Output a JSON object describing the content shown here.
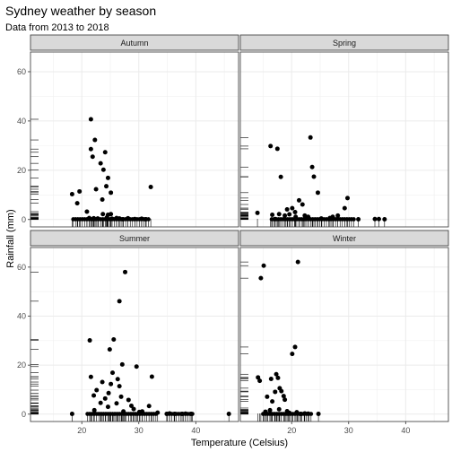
{
  "chart_data": {
    "type": "scatter",
    "title": "Sydney weather by season",
    "subtitle": "Data from 2013 to 2018",
    "xlabel": "Temperature (Celsius)",
    "ylabel": "Rainfall (mm)",
    "xlim": [
      11,
      47.5
    ],
    "ylim": [
      -3,
      68
    ],
    "x_ticks": [
      20,
      30,
      40
    ],
    "y_ticks": [
      0,
      20,
      40,
      60
    ],
    "grid": true,
    "rug": true,
    "facets": [
      {
        "name": "Autumn",
        "points": [
          [
            18.3,
            10.3
          ],
          [
            19.2,
            6.6
          ],
          [
            19.6,
            11.4
          ],
          [
            20.9,
            3.2
          ],
          [
            21.3,
            0.6
          ],
          [
            21.6,
            40.7
          ],
          [
            21.6,
            28.6
          ],
          [
            21.9,
            25.5
          ],
          [
            22.3,
            32.3
          ],
          [
            22.5,
            12.3
          ],
          [
            22.1,
            0.5
          ],
          [
            22.8,
            0.4
          ],
          [
            23.3,
            22.8
          ],
          [
            23.6,
            8.1
          ],
          [
            23.7,
            2.2
          ],
          [
            23.8,
            20.2
          ],
          [
            24.1,
            27.3
          ],
          [
            24.3,
            13.5
          ],
          [
            24.6,
            16.9
          ],
          [
            24.4,
            0.8
          ],
          [
            24.6,
            1.9
          ],
          [
            25.1,
            10.9
          ],
          [
            25.1,
            2.2
          ],
          [
            25.3,
            0.3
          ],
          [
            26.1,
            0.6
          ],
          [
            26.6,
            0.4
          ],
          [
            27.2,
            0.1
          ],
          [
            28.1,
            0.5
          ],
          [
            29.3,
            0.2
          ],
          [
            30.5,
            0.3
          ],
          [
            31.2,
            0.1
          ],
          [
            32.1,
            13.2
          ]
        ],
        "baseline_x": [
          [
            18.5,
            32.0
          ]
        ]
      },
      {
        "name": "Spring",
        "points": [
          [
            14.0,
            2.7
          ],
          [
            16.3,
            29.8
          ],
          [
            16.6,
            1.9
          ],
          [
            17.1,
            0.2
          ],
          [
            17.5,
            28.7
          ],
          [
            17.8,
            2.2
          ],
          [
            18.1,
            17.3
          ],
          [
            18.8,
            1.6
          ],
          [
            19.2,
            4.1
          ],
          [
            19.6,
            2.1
          ],
          [
            20.1,
            4.6
          ],
          [
            20.6,
            3.0
          ],
          [
            20.7,
            1.1
          ],
          [
            21.3,
            7.8
          ],
          [
            21.9,
            6.1
          ],
          [
            22.3,
            1.6
          ],
          [
            22.9,
            1.1
          ],
          [
            23.3,
            33.3
          ],
          [
            23.6,
            21.3
          ],
          [
            23.9,
            17.4
          ],
          [
            24.6,
            10.9
          ],
          [
            25.2,
            0.4
          ],
          [
            26.7,
            0.6
          ],
          [
            27.2,
            1.1
          ],
          [
            28.1,
            1.6
          ],
          [
            29.3,
            4.6
          ],
          [
            29.8,
            8.7
          ],
          [
            31.7,
            0.1
          ],
          [
            34.6,
            0.2
          ],
          [
            35.3,
            0.2
          ],
          [
            36.3,
            0.1
          ]
        ],
        "baseline_x": [
          [
            16.5,
            31.0
          ]
        ]
      },
      {
        "name": "Summer",
        "points": [
          [
            18.3,
            0.1
          ],
          [
            21.4,
            30.1
          ],
          [
            21.6,
            15.2
          ],
          [
            22.1,
            7.6
          ],
          [
            22.6,
            9.8
          ],
          [
            22.2,
            1.6
          ],
          [
            23.3,
            4.6
          ],
          [
            23.6,
            13.1
          ],
          [
            24.1,
            6.4
          ],
          [
            24.6,
            3.0
          ],
          [
            24.7,
            8.6
          ],
          [
            24.9,
            26.4
          ],
          [
            25.1,
            12.3
          ],
          [
            25.4,
            16.9
          ],
          [
            25.6,
            30.5
          ],
          [
            26.1,
            4.4
          ],
          [
            26.3,
            14.3
          ],
          [
            26.6,
            11.4
          ],
          [
            26.6,
            46.1
          ],
          [
            26.9,
            7.1
          ],
          [
            27.1,
            20.3
          ],
          [
            27.3,
            1.1
          ],
          [
            27.6,
            58.0
          ],
          [
            28.2,
            5.8
          ],
          [
            28.7,
            3.4
          ],
          [
            29.1,
            2.1
          ],
          [
            29.6,
            19.4
          ],
          [
            30.1,
            0.9
          ],
          [
            30.6,
            1.1
          ],
          [
            31.8,
            3.3
          ],
          [
            32.3,
            15.3
          ],
          [
            33.3,
            0.6
          ],
          [
            34.9,
            0.1
          ],
          [
            35.4,
            0.3
          ],
          [
            36.3,
            0.1
          ],
          [
            37.6,
            0.1
          ],
          [
            38.2,
            0.2
          ],
          [
            39.2,
            0.1
          ],
          [
            45.8,
            0.1
          ]
        ],
        "baseline_x": [
          [
            21.0,
            33.0
          ],
          [
            35.0,
            39.5
          ]
        ]
      },
      {
        "name": "Winter",
        "points": [
          [
            14.1,
            15.0
          ],
          [
            14.4,
            13.6
          ],
          [
            14.6,
            55.5
          ],
          [
            15.1,
            60.6
          ],
          [
            15.4,
            1.0
          ],
          [
            15.7,
            7.1
          ],
          [
            16.2,
            1.6
          ],
          [
            16.4,
            14.4
          ],
          [
            16.6,
            5.2
          ],
          [
            17.1,
            9.1
          ],
          [
            17.3,
            16.3
          ],
          [
            17.6,
            14.8
          ],
          [
            17.8,
            2.0
          ],
          [
            17.9,
            10.6
          ],
          [
            18.2,
            9.4
          ],
          [
            18.6,
            7.4
          ],
          [
            18.8,
            5.9
          ],
          [
            19.2,
            1.2
          ],
          [
            19.6,
            0.5
          ],
          [
            20.1,
            24.6
          ],
          [
            20.6,
            27.4
          ],
          [
            21.1,
            62.1
          ],
          [
            20.9,
            0.8
          ],
          [
            21.6,
            0.1
          ],
          [
            22.3,
            0.3
          ],
          [
            22.9,
            0.2
          ],
          [
            24.7,
            0.1
          ]
        ],
        "baseline_x": [
          [
            15.0,
            23.5
          ]
        ]
      }
    ]
  }
}
